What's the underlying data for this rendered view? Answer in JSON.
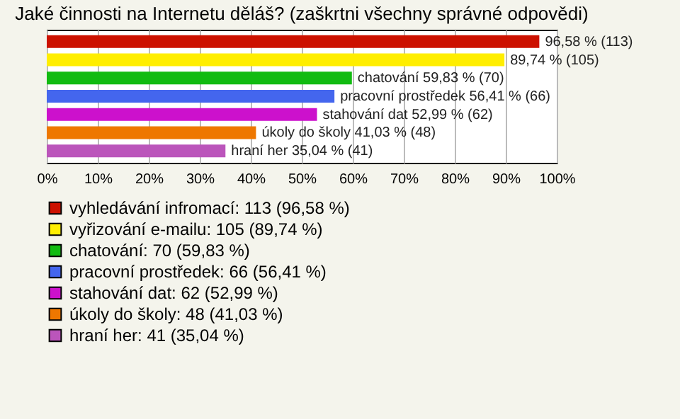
{
  "chart_data": {
    "type": "bar",
    "orientation": "horizontal",
    "title": "Jaké činnosti na Internetu děláš? (zaškrtni všechny správné odpovědi)",
    "categories": [
      null
    ],
    "series": [
      {
        "name": "vyhledávání infromací: 113 (96,58 %)",
        "color": "#cc1100",
        "values": [
          96.58
        ],
        "value_labels": [
          "96,58 % (113)"
        ]
      },
      {
        "name": "vyřizování e-mailu: 105 (89,74 %)",
        "color": "#ffee00",
        "values": [
          89.74
        ],
        "value_labels": [
          "89,74 % (105)"
        ]
      },
      {
        "name": "chatování: 70 (59,83 %)",
        "color": "#11bb11",
        "values": [
          59.83
        ],
        "value_labels": [
          "chatování 59,83 % (70)"
        ]
      },
      {
        "name": "pracovní prostředek: 66 (56,41 %)",
        "color": "#4466ee",
        "values": [
          56.41
        ],
        "value_labels": [
          "pracovní prostředek 56,41 % (66)"
        ]
      },
      {
        "name": "stahování dat: 62 (52,99 %)",
        "color": "#cc11cc",
        "values": [
          52.99
        ],
        "value_labels": [
          "stahování dat 52,99 % (62)"
        ]
      },
      {
        "name": "úkoly do školy: 48 (41,03 %)",
        "color": "#ee7700",
        "values": [
          41.03
        ],
        "value_labels": [
          "úkoly do školy 41,03 % (48)"
        ]
      },
      {
        "name": "hraní her: 41 (35,04 %)",
        "color": "#bb55bb",
        "values": [
          35.04
        ],
        "value_labels": [
          "hraní her 35,04 % (41)"
        ]
      }
    ],
    "xlim": [
      0,
      100
    ],
    "xticks": [
      {
        "value": 0,
        "label": "0%"
      },
      {
        "value": 10,
        "label": "10%"
      },
      {
        "value": 20,
        "label": "20%"
      },
      {
        "value": 30,
        "label": "30%"
      },
      {
        "value": 40,
        "label": "40%"
      },
      {
        "value": 50,
        "label": "50%"
      },
      {
        "value": 60,
        "label": "60%"
      },
      {
        "value": 70,
        "label": "70%"
      },
      {
        "value": 80,
        "label": "80%"
      },
      {
        "value": 90,
        "label": "90%"
      },
      {
        "value": 100,
        "label": "100%"
      }
    ],
    "grid": "x",
    "legend": "bottom",
    "tick_labels": "x"
  }
}
